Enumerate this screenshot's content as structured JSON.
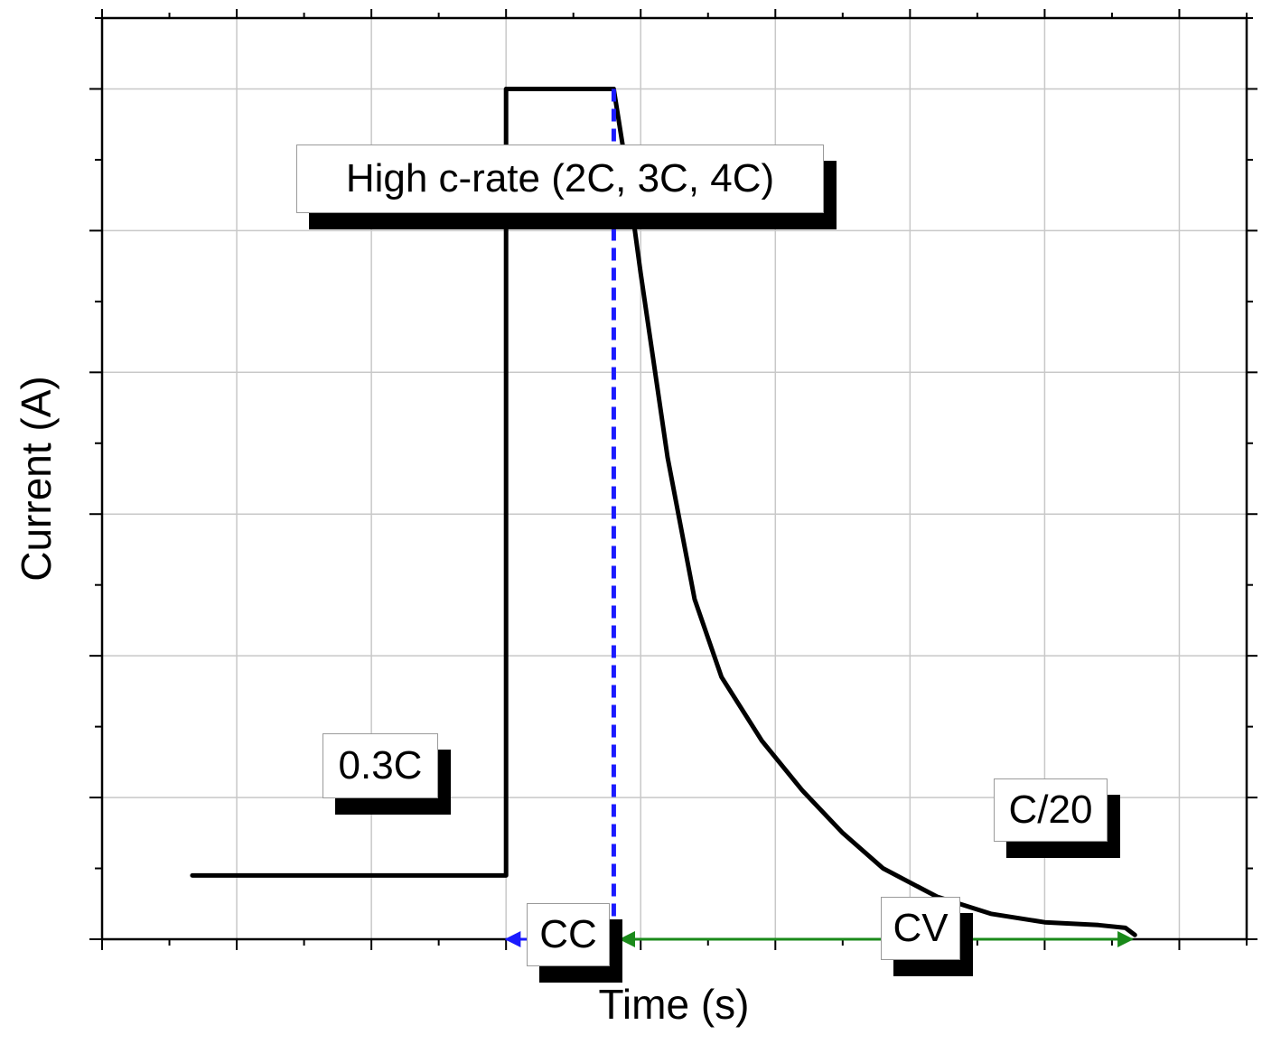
{
  "chart_data": {
    "type": "line",
    "title": "",
    "xlabel": "Time (s)",
    "ylabel": "Current (A)",
    "tick_labels_shown": false,
    "grid": true,
    "xlim": [
      0,
      8.5
    ],
    "ylim": [
      0,
      6.5
    ],
    "series": [
      {
        "color": "#000000",
        "points": [
          [
            0.67,
            0.45
          ],
          [
            3.0,
            0.45
          ],
          [
            3.0,
            6.0
          ],
          [
            3.8,
            6.0
          ],
          [
            3.9,
            5.4
          ],
          [
            4.0,
            4.7
          ],
          [
            4.2,
            3.4
          ],
          [
            4.4,
            2.4
          ],
          [
            4.6,
            1.85
          ],
          [
            4.9,
            1.4
          ],
          [
            5.2,
            1.05
          ],
          [
            5.5,
            0.75
          ],
          [
            5.8,
            0.5
          ],
          [
            6.2,
            0.3
          ],
          [
            6.6,
            0.18
          ],
          [
            7.0,
            0.12
          ],
          [
            7.4,
            0.1
          ],
          [
            7.6,
            0.08
          ],
          [
            7.67,
            0.03
          ]
        ]
      }
    ],
    "annotations": {
      "high_rate": "High c-rate (2C, 3C, 4C)",
      "low_rate": "0.3C",
      "cutoff": "C/20",
      "cc": "CC",
      "cv": "CV"
    },
    "transition_line": {
      "x": 3.8,
      "color": "#1a1aff",
      "style": "dashed"
    },
    "cc_arrow": {
      "from": 3.0,
      "to": 3.75,
      "y": 0,
      "color": "#1a1aff"
    },
    "cv_arrow": {
      "from": 3.85,
      "to": 7.65,
      "y": 0,
      "color": "#1a8a1a"
    }
  }
}
